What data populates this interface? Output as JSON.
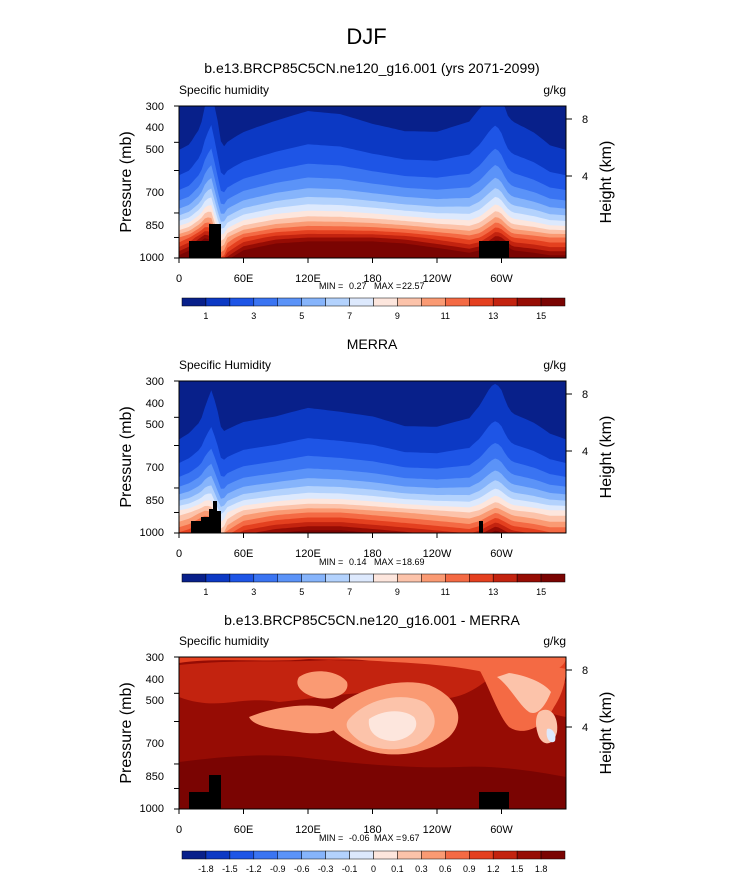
{
  "figure_title": "DJF",
  "chart_data": [
    {
      "type": "heatmap",
      "title": "b.e13.BRCP85C5CN.ne120_g16.001 (yrs 2071-2099)",
      "left_label": "Specific humidity",
      "units": "g/kg",
      "ylabel": "Pressure (mb)",
      "y2label": "Height (km)",
      "x_ticks": [
        "0",
        "60E",
        "120E",
        "180",
        "120W",
        "60W"
      ],
      "y_ticks": [
        "300",
        "400",
        "500",
        "700",
        "850",
        "1000"
      ],
      "y2_ticks": [
        "8",
        "4"
      ],
      "min_label": "MIN =",
      "min_value": "0.27",
      "max_label": "MAX =",
      "max_value": "22.57",
      "colorbar": {
        "labels": [
          "1",
          "3",
          "5",
          "7",
          "9",
          "11",
          "13",
          "15"
        ],
        "colors": [
          "#08208a",
          "#0c39c4",
          "#1e55e6",
          "#3a74f2",
          "#5b93f8",
          "#86b4fb",
          "#b3d2fd",
          "#dde9fd",
          "#fde6dd",
          "#fcc3aa",
          "#fa9a73",
          "#f46a44",
          "#e4401f",
          "#c3230f",
          "#960c04",
          "#7a0402"
        ]
      },
      "profile": {
        "lon": [
          0,
          10,
          20,
          25,
          30,
          35,
          40,
          45,
          60,
          90,
          120,
          150,
          180,
          210,
          240,
          270,
          280,
          290,
          295,
          300,
          305,
          310,
          330,
          345,
          360
        ],
        "q850": [
          11,
          12,
          14,
          15,
          14,
          10.5,
          8,
          10,
          12,
          13.5,
          14,
          14,
          14,
          13.5,
          12.5,
          11.5,
          12,
          13.5,
          14.5,
          14,
          13,
          12,
          11.5,
          11,
          11
        ],
        "mid": [
          2.5,
          3,
          5,
          9,
          12,
          7,
          3,
          3.5,
          4.5,
          6,
          7.5,
          7,
          5.5,
          4.5,
          4.5,
          6,
          8,
          11,
          12,
          10,
          7,
          6,
          4.5,
          3,
          2.5
        ]
      }
    },
    {
      "type": "heatmap",
      "title": "MERRA",
      "left_label": "Specific Humidity",
      "units": "g/kg",
      "ylabel": "Pressure (mb)",
      "y2label": "Height (km)",
      "x_ticks": [
        "0",
        "60E",
        "120E",
        "180",
        "120W",
        "60W"
      ],
      "y_ticks": [
        "300",
        "400",
        "500",
        "700",
        "850",
        "1000"
      ],
      "y2_ticks": [
        "8",
        "4"
      ],
      "min_label": "MIN =",
      "min_value": "0.14",
      "max_label": "MAX =",
      "max_value": "18.69",
      "colorbar": {
        "labels": [
          "1",
          "3",
          "5",
          "7",
          "9",
          "11",
          "13",
          "15"
        ],
        "colors": [
          "#08208a",
          "#0c39c4",
          "#1e55e6",
          "#3a74f2",
          "#5b93f8",
          "#86b4fb",
          "#b3d2fd",
          "#dde9fd",
          "#fde6dd",
          "#fcc3aa",
          "#fa9a73",
          "#f46a44",
          "#e4401f",
          "#c3230f",
          "#960c04",
          "#7a0402"
        ]
      },
      "profile": {
        "lon": [
          0,
          10,
          20,
          25,
          30,
          35,
          40,
          45,
          60,
          90,
          120,
          150,
          180,
          210,
          240,
          270,
          280,
          290,
          295,
          300,
          305,
          310,
          330,
          345,
          360
        ],
        "q850": [
          8.5,
          9,
          10,
          10.5,
          10,
          8,
          6.5,
          8,
          9.5,
          10.5,
          11,
          11,
          10.5,
          10,
          9.5,
          9,
          9.5,
          10.5,
          11,
          10.5,
          10,
          9.5,
          9,
          8.5,
          8.5
        ],
        "mid": [
          1.5,
          2,
          3,
          5,
          7,
          5,
          2.5,
          2.5,
          3,
          3.5,
          4.5,
          4,
          3.5,
          2.5,
          2.5,
          3.5,
          5,
          7.5,
          8,
          7,
          5,
          4,
          3,
          2,
          1.5
        ]
      }
    },
    {
      "type": "heatmap",
      "title": "b.e13.BRCP85C5CN.ne120_g16.001 - MERRA",
      "left_label": "Specific humidity",
      "units": "g/kg",
      "ylabel": "Pressure (mb)",
      "y2label": "Height (km)",
      "x_ticks": [
        "0",
        "60E",
        "120E",
        "180",
        "120W",
        "60W"
      ],
      "y_ticks": [
        "300",
        "400",
        "500",
        "700",
        "850",
        "1000"
      ],
      "y2_ticks": [
        "8",
        "4"
      ],
      "min_label": "MIN =",
      "min_value": "-0.06",
      "max_label": "MAX =",
      "max_value": "9.67",
      "colorbar": {
        "labels": [
          "-1.8",
          "-1.5",
          "-1.2",
          "-0.9",
          "-0.6",
          "-0.3",
          "-0.1",
          "0",
          "0.1",
          "0.3",
          "0.6",
          "0.9",
          "1.2",
          "1.5",
          "1.8"
        ],
        "colors": [
          "#08208a",
          "#0c39c4",
          "#1e55e6",
          "#3a74f2",
          "#5b93f8",
          "#86b4fb",
          "#b3d2fd",
          "#dde9fd",
          "#fde6dd",
          "#fcc3aa",
          "#fa9a73",
          "#f46a44",
          "#e4401f",
          "#c3230f",
          "#960c04",
          "#7a0402"
        ]
      }
    }
  ]
}
